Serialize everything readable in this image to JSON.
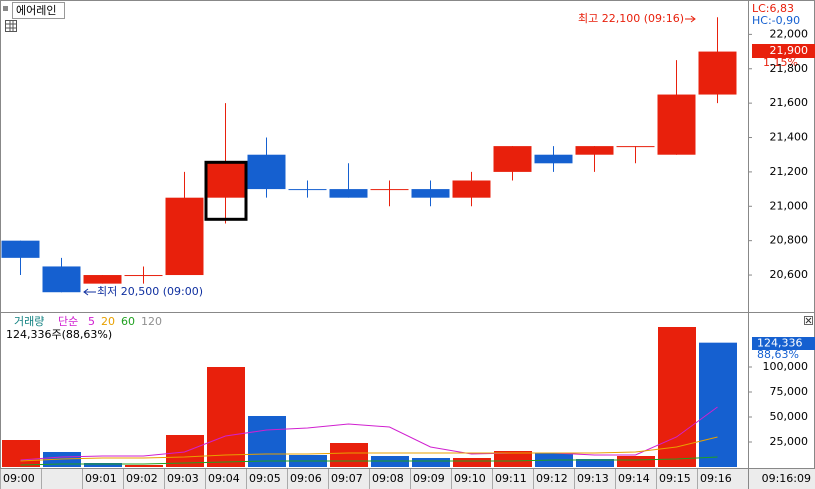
{
  "chart_data": [
    {
      "type": "candlestick",
      "title": "에어레인",
      "lc_label": "LC:6,83",
      "hc_label": "HC:-0,90",
      "open": [
        20800,
        20650,
        20550,
        20600,
        20600,
        21050,
        21300,
        21100,
        21100,
        21100,
        21100,
        21050,
        21200,
        21300,
        21300,
        21350,
        21300,
        21650
      ],
      "high": [
        20800,
        20700,
        20600,
        20650,
        21200,
        21600,
        21400,
        21150,
        21250,
        21150,
        21150,
        21200,
        21350,
        21350,
        21350,
        21350,
        21850,
        22100
      ],
      "low": [
        20600,
        20500,
        20550,
        20550,
        20600,
        20900,
        21050,
        21050,
        21050,
        21000,
        21000,
        21000,
        21150,
        21200,
        21200,
        21250,
        21300,
        21600
      ],
      "close": [
        20700,
        20500,
        20600,
        20600,
        21050,
        21250,
        21100,
        21100,
        21050,
        21100,
        21050,
        21150,
        21350,
        21250,
        21350,
        21350,
        21650,
        21900
      ],
      "colors": [
        "#1560d0",
        "#1560d0",
        "#e8200c",
        "#e8200c",
        "#e8200c",
        "#e8200c",
        "#1560d0",
        "#1560d0",
        "#1560d0",
        "#e8200c",
        "#1560d0",
        "#e8200c",
        "#e8200c",
        "#1560d0",
        "#e8200c",
        "#e8200c",
        "#e8200c",
        "#e8200c"
      ],
      "ylim": [
        20385,
        22200
      ],
      "yticks": [
        {
          "value": 20600,
          "label": "20,600"
        },
        {
          "value": 20800,
          "label": "20,800"
        },
        {
          "value": 21000,
          "label": "21,000"
        },
        {
          "value": 21200,
          "label": "21,200"
        },
        {
          "value": 21400,
          "label": "21,400"
        },
        {
          "value": 21600,
          "label": "21,600"
        },
        {
          "value": 21800,
          "label": "21,800"
        },
        {
          "value": 22000,
          "label": "22,000"
        }
      ],
      "selected": 5,
      "last_label": "21,900",
      "change_label": "1.15%",
      "high_annotation": "최고 22,100 (09:16)",
      "low_annotation": "최저 20,500 (09:00)"
    },
    {
      "type": "bar",
      "title": "거래량",
      "ma_type": "단순",
      "categories": [
        "09:00",
        null,
        "09:01",
        "09:02",
        "09:03",
        "09:04",
        "09:05",
        "09:06",
        "09:07",
        "09:08",
        "09:09",
        "09:10",
        "09:11",
        "09:12",
        "09:13",
        "09:14",
        "09:15",
        "09:16"
      ],
      "cursor_label": "09:16:09",
      "values": [
        27000,
        15000,
        4000,
        2000,
        32000,
        100000,
        51000,
        12000,
        24000,
        11000,
        9000,
        9000,
        16000,
        14000,
        8000,
        11000,
        140000,
        124336
      ],
      "colors": [
        "#e8200c",
        "#1560d0",
        "#1560d0",
        "#e8200c",
        "#e8200c",
        "#e8200c",
        "#1560d0",
        "#1560d0",
        "#e8200c",
        "#1560d0",
        "#1560d0",
        "#e8200c",
        "#e8200c",
        "#1560d0",
        "#1560d0",
        "#e8200c",
        "#e8200c",
        "#1560d0"
      ],
      "series": [
        {
          "name": "5",
          "color": "#d020d0",
          "values": [
            7000,
            10000,
            11000,
            11000,
            15000,
            31000,
            37000,
            39000,
            43000,
            40000,
            20000,
            13000,
            14000,
            14000,
            12000,
            12000,
            30000,
            60000
          ]
        },
        {
          "name": "20",
          "color": "#e8a000",
          "values": [
            6000,
            8000,
            9000,
            9000,
            10000,
            12000,
            13000,
            13000,
            14000,
            14000,
            14000,
            14000,
            14000,
            14000,
            14000,
            15000,
            20000,
            30000
          ]
        },
        {
          "name": "60",
          "color": "#20a020",
          "values": [
            2000,
            3000,
            3000,
            3000,
            4000,
            5000,
            6000,
            6000,
            6000,
            6000,
            6000,
            6000,
            6000,
            7000,
            7000,
            7000,
            8000,
            10000
          ]
        },
        {
          "name": "120",
          "color": "#909090",
          "values": [
            null,
            null,
            null,
            null,
            null,
            null,
            null,
            null,
            null,
            null,
            null,
            null,
            null,
            null,
            null,
            null,
            null,
            null
          ]
        }
      ],
      "ylim": [
        0,
        154000
      ],
      "yticks": [
        {
          "value": 25000,
          "label": "25,000"
        },
        {
          "value": 50000,
          "label": "50,000"
        },
        {
          "value": 75000,
          "label": "75,000"
        },
        {
          "value": 100000,
          "label": "100,000"
        }
      ],
      "info_label": "124,336주(88,63%)",
      "last_label": "124,336",
      "ratio_label": "88,63%"
    }
  ]
}
